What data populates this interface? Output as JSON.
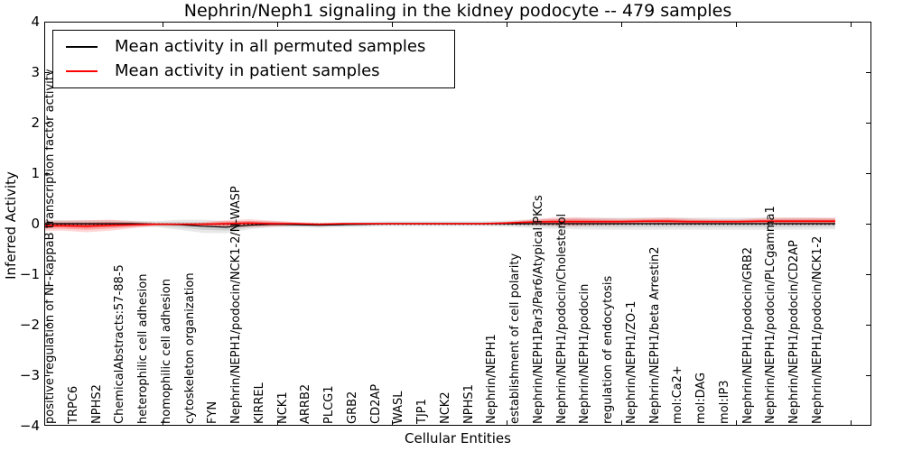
{
  "title": "Nephrin/Neph1 signaling in the kidney podocyte -- 479 samples",
  "xlabel": "Cellular Entities",
  "ylabel": "Inferred Activity",
  "yticks": [
    "4",
    "3",
    "2",
    "1",
    "0",
    "−1",
    "−2",
    "−3",
    "−4"
  ],
  "legend": [
    {
      "label": "Mean activity in all permuted samples",
      "color": "#000000"
    },
    {
      "label": "Mean activity in patient samples",
      "color": "#ff0000"
    }
  ],
  "colors": {
    "permuted_line": "#000000",
    "patient_line": "#ff0000",
    "permuted_band": "rgba(0,0,0,0.09)",
    "permuted_band_inner": "rgba(0,0,0,0.10)",
    "patient_band_outer": "rgba(255,0,0,0.16)",
    "patient_band_mid": "rgba(255,0,0,0.22)",
    "patient_band_core": "rgba(255,0,0,0.28)",
    "zero_line": "#000000",
    "axis": "#000000"
  },
  "chart_data": {
    "type": "line",
    "title": "Nephrin/Neph1 signaling in the kidney podocyte -- 479 samples",
    "xlabel": "Cellular Entities",
    "ylabel": "Inferred Activity",
    "ylim": [
      -4,
      4
    ],
    "grid": false,
    "legend_position": "upper left",
    "zero_line": true,
    "categories": [
      "positive regulation of NF-kappaB transcription factor activity",
      "TRPC6",
      "NPHS2",
      "ChemicalAbstracts:57-88-5",
      "heterophilic cell adhesion",
      "homophilic cell adhesion",
      "cytoskeleton organization",
      "FYN",
      "Nephrin/NEPH1/podocin/NCK1-2/N-WASP",
      "KIRREL",
      "NCK1",
      "ARRB2",
      "PLCG1",
      "GRB2",
      "CD2AP",
      "WASL",
      "TJP1",
      "NCK2",
      "NPHS1",
      "Nephrin/NEPH1",
      "establishment of cell polarity",
      "Nephrin/NEPH1Par3/Par6/Atypical PKCs",
      "Nephrin/NEPH1/podocin/Cholesterol",
      "Nephrin/NEPH1/podocin",
      "regulation of endocytosis",
      "Nephrin/NEPH1/ZO-1",
      "Nephrin/NEPH1/beta Arrestin2",
      "mol:Ca2+",
      "mol:DAG",
      "mol:IP3",
      "Nephrin/NEPH1/podocin/GRB2",
      "Nephrin/NEPH1/podocin/PLCgamma1",
      "Nephrin/NEPH1/podocin/CD2AP",
      "Nephrin/NEPH1/podocin/NCK1-2"
    ],
    "series": [
      {
        "name": "Mean activity in all permuted samples",
        "color": "#000000",
        "values": [
          0,
          0,
          0,
          0,
          -0.01,
          -0.02,
          -0.05,
          -0.07,
          -0.03,
          -0.01,
          -0.02,
          -0.03,
          -0.02,
          -0.01,
          0,
          0,
          0,
          0,
          0,
          0,
          0,
          0,
          0,
          0,
          0,
          0,
          0,
          0,
          0,
          0,
          0,
          0,
          0,
          0
        ]
      },
      {
        "name": "Mean activity in patient samples",
        "color": "#ff0000",
        "values": [
          -0.04,
          -0.05,
          -0.03,
          -0.02,
          -0.01,
          -0.01,
          -0.01,
          0,
          0.01,
          0,
          0,
          -0.01,
          0,
          0,
          0,
          0,
          0,
          0,
          0,
          0.01,
          0.03,
          0.04,
          0.04,
          0.04,
          0.04,
          0.05,
          0.05,
          0.04,
          0.04,
          0.04,
          0.05,
          0.05,
          0.05,
          0.05
        ]
      },
      {
        "name": "permuted band halfwidth",
        "color": "rgba(0,0,0,0.12)",
        "values": [
          0.07,
          0.07,
          0.07,
          0.06,
          0.06,
          0.1,
          0.13,
          0.12,
          0.08,
          0.06,
          0.05,
          0.05,
          0.05,
          0.05,
          0.05,
          0.05,
          0.05,
          0.05,
          0.05,
          0.06,
          0.08,
          0.1,
          0.11,
          0.12,
          0.12,
          0.12,
          0.12,
          0.12,
          0.12,
          0.12,
          0.12,
          0.12,
          0.12,
          0.11
        ]
      },
      {
        "name": "patient band halfwidth",
        "color": "rgba(255,0,0,0.2)",
        "values": [
          0.1,
          0.12,
          0.11,
          0.07,
          0.03,
          0.02,
          0.04,
          0.07,
          0.08,
          0.06,
          0.03,
          0.02,
          0.02,
          0.02,
          0.02,
          0.02,
          0.02,
          0.02,
          0.02,
          0.03,
          0.05,
          0.08,
          0.09,
          0.07,
          0.06,
          0.06,
          0.07,
          0.06,
          0.05,
          0.05,
          0.06,
          0.07,
          0.07,
          0.07
        ]
      }
    ]
  }
}
